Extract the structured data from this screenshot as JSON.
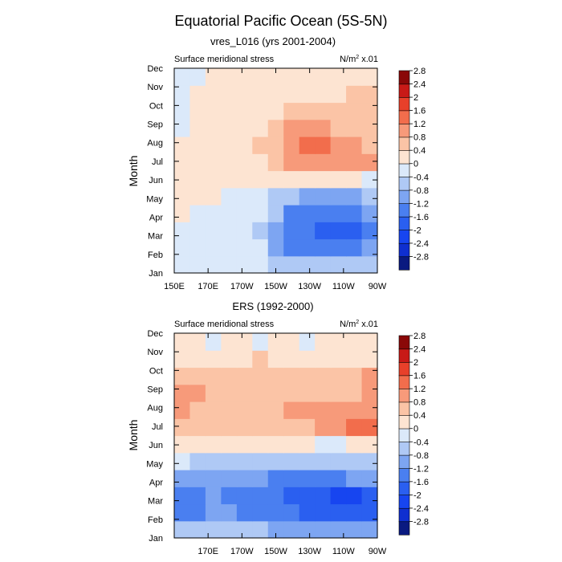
{
  "title": "Equatorial Pacific Ocean (5S-5N)",
  "colorbar": {
    "levels": [
      -2.8,
      -2.4,
      -2.0,
      -1.6,
      -1.2,
      -0.8,
      -0.4,
      0,
      0.4,
      0.8,
      1.2,
      1.6,
      2.0,
      2.4,
      2.8
    ],
    "labels": [
      "-2.8",
      "-2.4",
      "-2",
      "-1.6",
      "-1.2",
      "-0.8",
      "-0.4",
      "0",
      "0.4",
      "0.8",
      "1.2",
      "1.6",
      "2",
      "2.4",
      "2.8"
    ],
    "colors": [
      "#0a1a80",
      "#0f2fd0",
      "#1745f0",
      "#2a5ff0",
      "#4a7ff0",
      "#7da5f2",
      "#afc9f5",
      "#dbe9fa",
      "#fde4d2",
      "#fbc4a6",
      "#f79a7a",
      "#f26d4c",
      "#e8402a",
      "#c81a17",
      "#8a0808"
    ]
  },
  "panels": [
    {
      "subtitle": "vres_L016 (yrs 2001-2004)",
      "left_label": "Surface meridional stress",
      "units_base": "N/m",
      "units_exp": "2",
      "units_scale": " x.01"
    },
    {
      "subtitle": "ERS (1992-2000)",
      "left_label": "Surface meridional stress",
      "units_base": "N/m",
      "units_exp": "2",
      "units_scale": " x.01"
    }
  ],
  "chart_data": [
    {
      "type": "heatmap",
      "title": "vres_L016 (yrs 2001-2004)",
      "xlabel": "",
      "ylabel": "Month",
      "x_tick_labels": [
        "150E",
        "170E",
        "170W",
        "150W",
        "130W",
        "110W",
        "90W"
      ],
      "y_tick_labels": [
        "Jan",
        "Feb",
        "Mar",
        "Apr",
        "May",
        "Jun",
        "Jul",
        "Aug",
        "Sep",
        "Oct",
        "Nov",
        "Dec"
      ],
      "x_lon_east": [
        150,
        160,
        170,
        180,
        190,
        200,
        210,
        220,
        230,
        240,
        250,
        260,
        270
      ],
      "values": [
        [
          -0.2,
          -0.2,
          -0.2,
          -0.2,
          -0.2,
          -0.3,
          -0.5,
          -0.6,
          -0.7,
          -0.7,
          -0.7,
          -0.6,
          -0.5
        ],
        [
          -0.1,
          -0.2,
          -0.2,
          -0.2,
          -0.2,
          -0.3,
          -0.8,
          -1.2,
          -1.4,
          -1.4,
          -1.4,
          -1.2,
          -0.9
        ],
        [
          -0.1,
          -0.2,
          -0.2,
          -0.2,
          -0.2,
          -0.4,
          -0.9,
          -1.3,
          -1.5,
          -1.6,
          -1.7,
          -1.6,
          -1.2
        ],
        [
          0.1,
          0.0,
          -0.1,
          -0.1,
          -0.2,
          -0.3,
          -0.7,
          -1.2,
          -1.4,
          -1.5,
          -1.5,
          -1.4,
          -1.0
        ],
        [
          0.2,
          0.1,
          0.1,
          0.0,
          -0.1,
          -0.2,
          -0.4,
          -0.6,
          -0.8,
          -0.8,
          -0.9,
          -0.8,
          -0.6
        ],
        [
          0.2,
          0.2,
          0.2,
          0.2,
          0.1,
          0.1,
          0.1,
          0.2,
          0.3,
          0.2,
          0.2,
          0.1,
          0.0
        ],
        [
          0.2,
          0.2,
          0.2,
          0.3,
          0.3,
          0.4,
          0.6,
          0.9,
          1.0,
          1.1,
          1.1,
          1.0,
          0.9
        ],
        [
          0.1,
          0.2,
          0.2,
          0.3,
          0.4,
          0.5,
          0.8,
          1.1,
          1.3,
          1.3,
          1.1,
          0.9,
          0.8
        ],
        [
          0.0,
          0.1,
          0.2,
          0.2,
          0.3,
          0.4,
          0.6,
          0.9,
          1.0,
          0.9,
          0.8,
          0.7,
          0.6
        ],
        [
          -0.1,
          0.1,
          0.1,
          0.2,
          0.2,
          0.3,
          0.4,
          0.5,
          0.5,
          0.5,
          0.5,
          0.6,
          0.6
        ],
        [
          -0.1,
          0.1,
          0.1,
          0.2,
          0.2,
          0.3,
          0.3,
          0.3,
          0.3,
          0.3,
          0.4,
          0.5,
          0.5
        ],
        [
          -0.1,
          0.0,
          0.1,
          0.1,
          0.2,
          0.2,
          0.2,
          0.2,
          0.2,
          0.2,
          0.3,
          0.3,
          0.3
        ]
      ]
    },
    {
      "type": "heatmap",
      "title": "ERS (1992-2000)",
      "xlabel": "",
      "ylabel": "Month",
      "x_tick_labels": [
        "170E",
        "170W",
        "150W",
        "130W",
        "110W",
        "90W"
      ],
      "y_tick_labels": [
        "Jan",
        "Feb",
        "Mar",
        "Apr",
        "May",
        "Jun",
        "Jul",
        "Aug",
        "Sep",
        "Oct",
        "Nov",
        "Dec"
      ],
      "x_lon_east": [
        150,
        160,
        170,
        180,
        190,
        200,
        210,
        220,
        230,
        240,
        250,
        260,
        270
      ],
      "values": [
        [
          -0.6,
          -0.7,
          -0.6,
          -0.6,
          -0.6,
          -0.7,
          -0.8,
          -1.0,
          -1.0,
          -1.1,
          -1.0,
          -0.9,
          -0.8
        ],
        [
          -1.3,
          -1.2,
          -1.0,
          -1.1,
          -1.2,
          -1.3,
          -1.3,
          -1.5,
          -1.6,
          -1.6,
          -1.7,
          -1.8,
          -1.6
        ],
        [
          -1.5,
          -1.3,
          -1.1,
          -1.2,
          -1.3,
          -1.4,
          -1.5,
          -1.7,
          -1.8,
          -1.9,
          -2.0,
          -2.1,
          -1.8
        ],
        [
          -0.8,
          -0.9,
          -0.9,
          -0.9,
          -1.0,
          -1.1,
          -1.2,
          -1.3,
          -1.3,
          -1.3,
          -1.3,
          -1.1,
          -1.0
        ],
        [
          -0.3,
          -0.4,
          -0.4,
          -0.4,
          -0.4,
          -0.5,
          -0.5,
          -0.6,
          -0.6,
          -0.6,
          -0.5,
          -0.5,
          -0.4
        ],
        [
          0.3,
          0.4,
          0.4,
          0.4,
          0.4,
          0.3,
          0.3,
          0.2,
          0.1,
          0.0,
          0.0,
          0.1,
          0.2
        ],
        [
          0.7,
          0.8,
          0.8,
          0.8,
          0.7,
          0.7,
          0.8,
          0.8,
          0.8,
          0.9,
          1.1,
          1.3,
          1.3
        ],
        [
          0.9,
          0.8,
          0.7,
          0.8,
          0.7,
          0.8,
          0.8,
          0.9,
          0.9,
          0.9,
          1.0,
          1.1,
          1.2
        ],
        [
          1.0,
          0.9,
          0.8,
          0.8,
          0.8,
          0.8,
          0.7,
          0.6,
          0.6,
          0.7,
          0.7,
          0.8,
          1.0
        ],
        [
          0.7,
          0.7,
          0.7,
          0.7,
          0.6,
          0.6,
          0.7,
          0.6,
          0.6,
          0.6,
          0.7,
          0.8,
          0.9
        ],
        [
          0.4,
          0.4,
          0.3,
          0.3,
          0.4,
          0.5,
          0.4,
          0.3,
          0.4,
          0.4,
          0.4,
          0.4,
          0.4
        ],
        [
          0.1,
          0.1,
          -0.1,
          0.1,
          0.1,
          0.0,
          0.1,
          0.1,
          0.0,
          0.1,
          0.2,
          0.1,
          0.2
        ]
      ]
    }
  ]
}
